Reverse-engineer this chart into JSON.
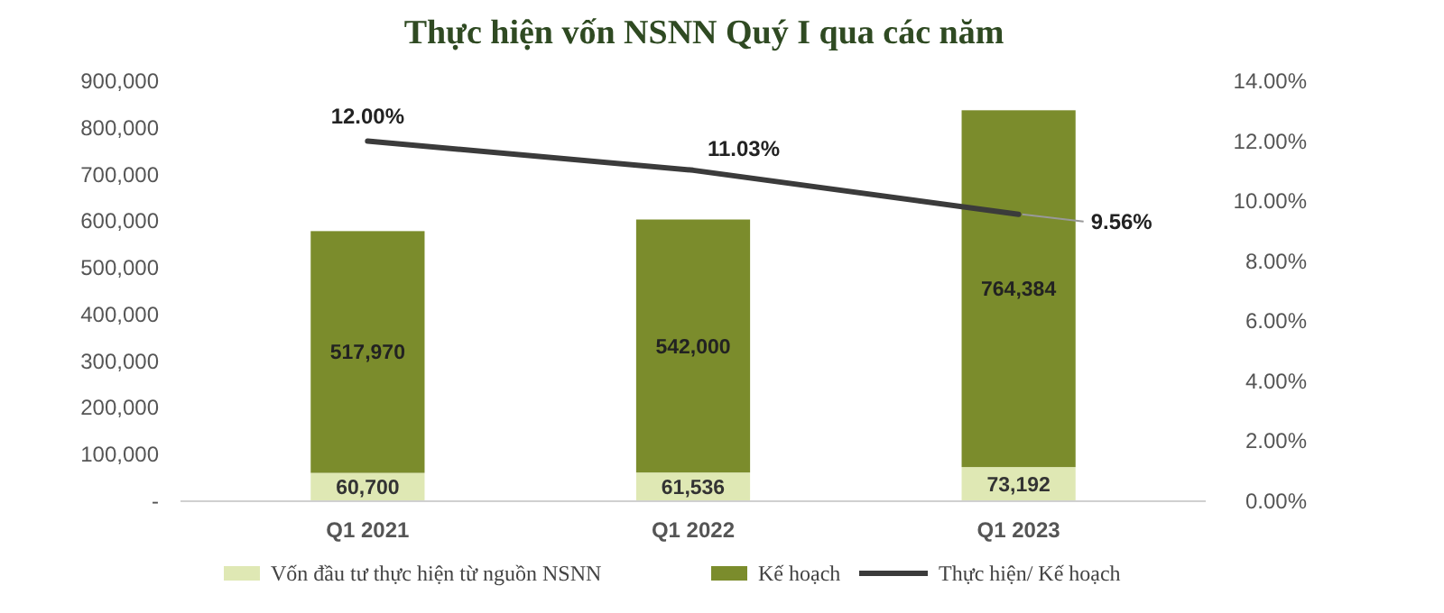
{
  "chart_data": {
    "type": "bar",
    "title": "Thực hiện vốn NSNN Quý I qua các năm",
    "categories": [
      "Q1 2021",
      "Q1 2022",
      "Q1 2023"
    ],
    "stacked": true,
    "legend": "bottom",
    "ylim": [
      0,
      900000
    ],
    "yticks": [
      {
        "value": 0,
        "label": "-"
      },
      {
        "value": 100000,
        "label": "100,000"
      },
      {
        "value": 200000,
        "label": "200,000"
      },
      {
        "value": 300000,
        "label": "300,000"
      },
      {
        "value": 400000,
        "label": "400,000"
      },
      {
        "value": 500000,
        "label": "500,000"
      },
      {
        "value": 600000,
        "label": "600,000"
      },
      {
        "value": 700000,
        "label": "700,000"
      },
      {
        "value": 800000,
        "label": "800,000"
      },
      {
        "value": 900000,
        "label": "900,000"
      }
    ],
    "y2lim": [
      0,
      14
    ],
    "y2ticks": [
      {
        "value": 0,
        "label": "0.00%"
      },
      {
        "value": 2,
        "label": "2.00%"
      },
      {
        "value": 4,
        "label": "4.00%"
      },
      {
        "value": 6,
        "label": "6.00%"
      },
      {
        "value": 8,
        "label": "8.00%"
      },
      {
        "value": 10,
        "label": "10.00%"
      },
      {
        "value": 12,
        "label": "12.00%"
      },
      {
        "value": 14,
        "label": "14.00%"
      }
    ],
    "series": [
      {
        "name": "Vốn đầu tư thực hiện từ nguồn NSNN",
        "color": "#dfe8b4",
        "values": [
          60700,
          61536,
          73192
        ],
        "value_labels": [
          "60,700",
          "61,536",
          "73,192"
        ]
      },
      {
        "name": "Kế hoạch",
        "color": "#7b8c2c",
        "values": [
          517970,
          542000,
          764384
        ],
        "value_labels": [
          "517,970",
          "542,000",
          "764,384"
        ]
      },
      {
        "name": "Thực hiện/ Kế hoạch",
        "type": "line",
        "axis": "y2",
        "color": "#3b3b3b",
        "values": [
          12.0,
          11.03,
          9.56
        ],
        "value_labels": [
          "12.00%",
          "11.03%",
          "9.56%"
        ]
      }
    ]
  }
}
